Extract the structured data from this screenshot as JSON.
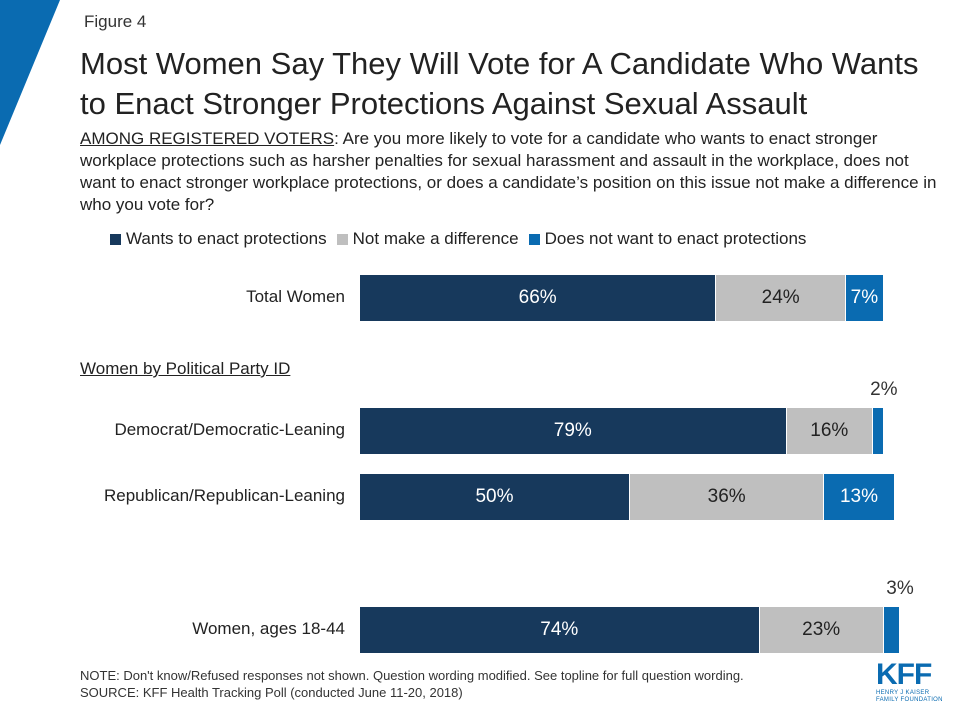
{
  "figure_label": "Figure 4",
  "title": "Most Women Say They Will Vote for A Candidate Who Wants to Enact Stronger Protections Against Sexual Assault",
  "subtitle": {
    "lead": "AMONG REGISTERED VOTERS",
    "text": ": Are you more likely to vote for a candidate who wants to enact stronger workplace protections such as harsher penalties for sexual harassment and assault in the workplace, does not want to enact stronger workplace protections, or does a candidate’s position on this issue not make a difference in who you vote for?"
  },
  "colors": {
    "wants": "#17395c",
    "no_difference": "#bfbfbf",
    "does_not_want": "#0a6bb1",
    "corner": "#0a6bb1"
  },
  "chart_data": {
    "type": "bar",
    "orientation": "horizontal",
    "stacked": true,
    "series": [
      {
        "name": "Wants to enact protections"
      },
      {
        "name": "Not make a difference"
      },
      {
        "name": "Does not want to enact protections"
      }
    ],
    "group_label": "Women by Political Party ID",
    "rows": [
      {
        "label": "Total Women",
        "values": [
          66,
          24,
          7
        ],
        "labels": [
          "66%",
          "24%",
          "7%"
        ],
        "outside": ""
      },
      {
        "label": "Democrat/Democratic-Leaning",
        "values": [
          79,
          16,
          2
        ],
        "labels": [
          "79%",
          "16%",
          ""
        ],
        "outside": "2%"
      },
      {
        "label": "Republican/Republican-Leaning",
        "values": [
          50,
          36,
          13
        ],
        "labels": [
          "50%",
          "36%",
          "13%"
        ],
        "outside": ""
      },
      {
        "label": "Women, ages 18-44",
        "values": [
          74,
          23,
          3
        ],
        "labels": [
          "74%",
          "23%",
          ""
        ],
        "outside": "3%"
      }
    ],
    "xlim": [
      0,
      100
    ],
    "legend_position": "top"
  },
  "footer": {
    "note": "NOTE: Don't know/Refused responses not shown. Question wording modified. See topline for full question wording.",
    "source": "SOURCE: KFF Health Tracking Poll (conducted June 11-20, 2018)"
  },
  "logo": {
    "text": "KFF",
    "org_line1": "HENRY J KAISER",
    "org_line2": "FAMILY FOUNDATION"
  }
}
